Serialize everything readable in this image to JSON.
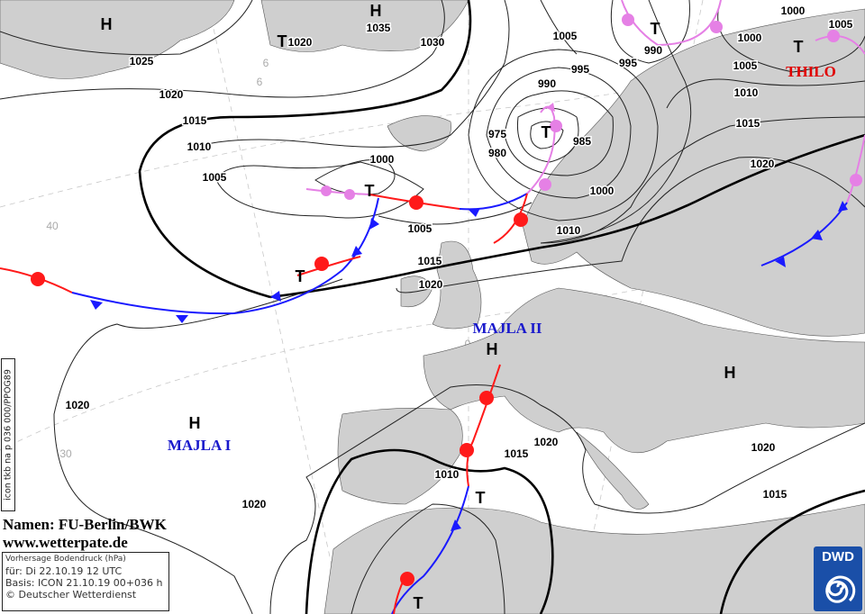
{
  "credit": {
    "line1": "Namen: FU-Berlin/BWK",
    "line2": "www.wetterpate.de"
  },
  "infobox": {
    "title": "Vorhersage Bodendruck (hPa)",
    "valid": "für:  Di 22.10.19  12 UTC",
    "basis": "Basis: ICON  21.10.19 00+036 h",
    "copyright": "© Deutscher Wetterdienst"
  },
  "model_tag": "icon tkb na p 036 000/PPOG89",
  "logo": {
    "text": "DWD",
    "color": "#1a4fa8"
  },
  "colors": {
    "land": "#cfcfcf",
    "sea": "#ffffff",
    "cold_front": "#1a1aff",
    "warm_front": "#ff1a1a",
    "occlusion": "#e580e5",
    "low_name": "#e00000",
    "high_name": "#1a1acc"
  },
  "systems": {
    "thilo": "THILO",
    "majla2": "MAJLA II",
    "majla1": "MAJLA I"
  },
  "centers": {
    "high": "H",
    "low": "T",
    "low_975": "975"
  },
  "grid_labels": [
    "40",
    "30",
    "0",
    "6",
    "6"
  ],
  "isobar_labels": [
    "1025",
    "1020",
    "1015",
    "1010",
    "1005",
    "1000",
    "1005",
    "1015",
    "1020",
    "1035",
    "1030",
    "1020",
    "1005",
    "995",
    "990",
    "975",
    "980",
    "985",
    "1000",
    "1010",
    "995",
    "990",
    "1000",
    "1005",
    "1000",
    "1005",
    "1010",
    "1015",
    "1020",
    "1020",
    "1020",
    "1010",
    "1015",
    "1020",
    "1020",
    "1015"
  ]
}
